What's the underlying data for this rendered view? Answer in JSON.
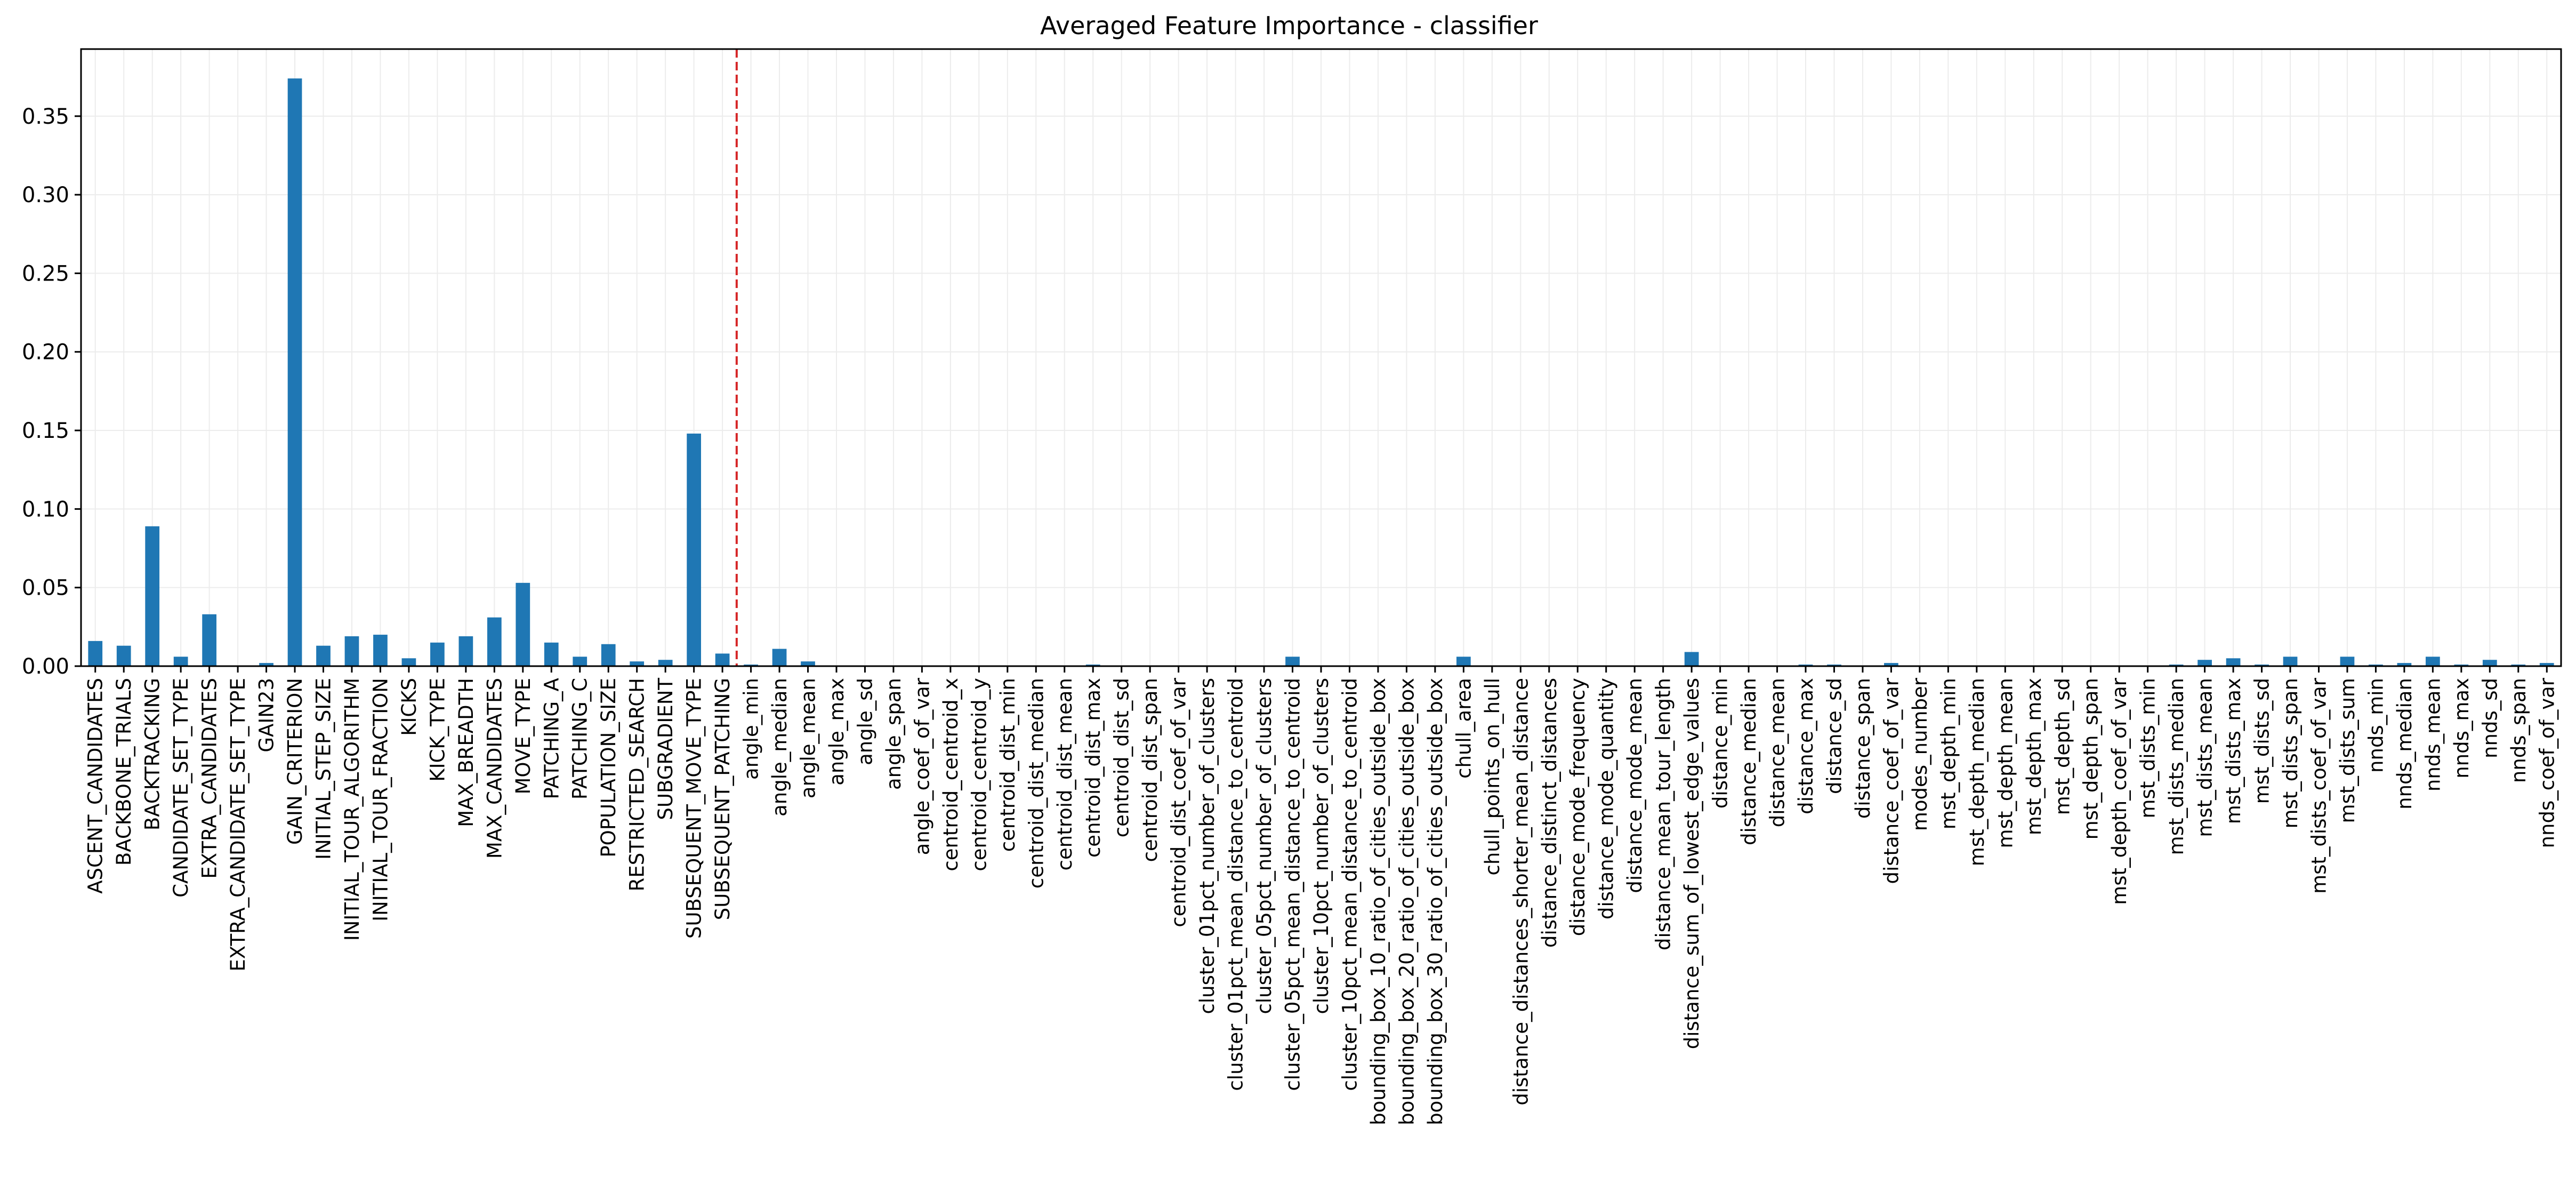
{
  "chart_data": {
    "type": "bar",
    "title": "Averaged Feature Importance - classifier",
    "xlabel": "",
    "ylabel": "",
    "ylim": [
      0,
      0.3927
    ],
    "yticks": [
      "0.00",
      "0.05",
      "0.10",
      "0.15",
      "0.20",
      "0.25",
      "0.30",
      "0.35"
    ],
    "grid": true,
    "reference_line": {
      "after_category": "SUBSEQUENT_PATCHING",
      "style": "dashed",
      "color": "#d62728"
    },
    "bar_color": "#1f77b4",
    "categories": [
      "ASCENT_CANDIDATES",
      "BACKBONE_TRIALS",
      "BACKTRACKING",
      "CANDIDATE_SET_TYPE",
      "EXTRA_CANDIDATES",
      "EXTRA_CANDIDATE_SET_TYPE",
      "GAIN23",
      "GAIN_CRITERION",
      "INITIAL_STEP_SIZE",
      "INITIAL_TOUR_ALGORITHM",
      "INITIAL_TOUR_FRACTION",
      "KICKS",
      "KICK_TYPE",
      "MAX_BREADTH",
      "MAX_CANDIDATES",
      "MOVE_TYPE",
      "PATCHING_A",
      "PATCHING_C",
      "POPULATION_SIZE",
      "RESTRICTED_SEARCH",
      "SUBGRADIENT",
      "SUBSEQUENT_MOVE_TYPE",
      "SUBSEQUENT_PATCHING",
      "angle_min",
      "angle_median",
      "angle_mean",
      "angle_max",
      "angle_sd",
      "angle_span",
      "angle_coef_of_var",
      "centroid_centroid_x",
      "centroid_centroid_y",
      "centroid_dist_min",
      "centroid_dist_median",
      "centroid_dist_mean",
      "centroid_dist_max",
      "centroid_dist_sd",
      "centroid_dist_span",
      "centroid_dist_coef_of_var",
      "cluster_01pct_number_of_clusters",
      "cluster_01pct_mean_distance_to_centroid",
      "cluster_05pct_number_of_clusters",
      "cluster_05pct_mean_distance_to_centroid",
      "cluster_10pct_number_of_clusters",
      "cluster_10pct_mean_distance_to_centroid",
      "bounding_box_10_ratio_of_cities_outside_box",
      "bounding_box_20_ratio_of_cities_outside_box",
      "bounding_box_30_ratio_of_cities_outside_box",
      "chull_area",
      "chull_points_on_hull",
      "distance_distances_shorter_mean_distance",
      "distance_distinct_distances",
      "distance_mode_frequency",
      "distance_mode_quantity",
      "distance_mode_mean",
      "distance_mean_tour_length",
      "distance_sum_of_lowest_edge_values",
      "distance_min",
      "distance_median",
      "distance_mean",
      "distance_max",
      "distance_sd",
      "distance_span",
      "distance_coef_of_var",
      "modes_number",
      "mst_depth_min",
      "mst_depth_median",
      "mst_depth_mean",
      "mst_depth_max",
      "mst_depth_sd",
      "mst_depth_span",
      "mst_depth_coef_of_var",
      "mst_dists_min",
      "mst_dists_median",
      "mst_dists_mean",
      "mst_dists_max",
      "mst_dists_sd",
      "mst_dists_span",
      "mst_dists_coef_of_var",
      "mst_dists_sum",
      "nnds_min",
      "nnds_median",
      "nnds_mean",
      "nnds_max",
      "nnds_sd",
      "nnds_span",
      "nnds_coef_of_var"
    ],
    "values": [
      0.016,
      0.013,
      0.089,
      0.006,
      0.033,
      0.0,
      0.002,
      0.374,
      0.013,
      0.019,
      0.02,
      0.005,
      0.015,
      0.019,
      0.031,
      0.053,
      0.015,
      0.006,
      0.014,
      0.003,
      0.004,
      0.148,
      0.008,
      0.001,
      0.011,
      0.003,
      0.0005,
      0.0005,
      0.0,
      0.0,
      0.0,
      0.0,
      0.0,
      0.0,
      0.0,
      0.001,
      0.0005,
      0.0005,
      0.0,
      0.0,
      0.0,
      0.0,
      0.006,
      0.0,
      0.0,
      0.0,
      0.0,
      0.0,
      0.006,
      0.0,
      0.0,
      0.0,
      0.0,
      0.0,
      0.0,
      0.0,
      0.009,
      0.0005,
      0.0,
      0.0005,
      0.001,
      0.001,
      0.0005,
      0.002,
      0.0005,
      0.0005,
      0.0005,
      0.0005,
      0.0005,
      0.0005,
      0.0005,
      0.0005,
      0.0005,
      0.001,
      0.004,
      0.005,
      0.001,
      0.006,
      0.0005,
      0.006,
      0.001,
      0.002,
      0.006,
      0.001,
      0.004,
      0.001,
      0.002
    ]
  }
}
